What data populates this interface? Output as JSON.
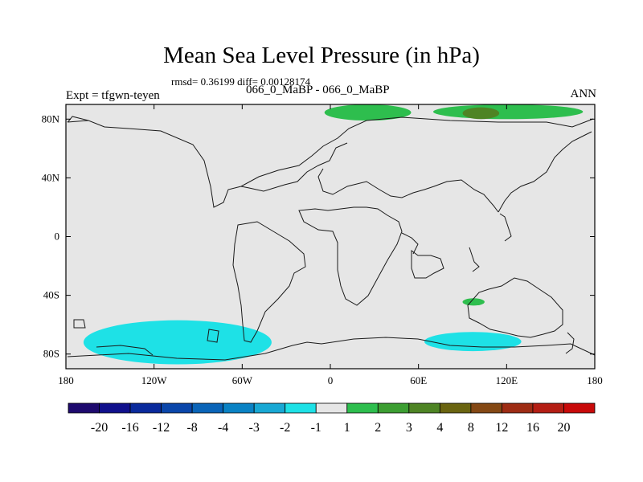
{
  "chart_data": {
    "type": "heatmap",
    "title": "Mean Sea Level Pressure (in hPa)",
    "stats_line": "rmsd= 0.36199 diff= 0.00128174",
    "subtitle": "066_0_MaBP - 066_0_MaBP",
    "experiment_label": "Expt = tfgwn-teyen",
    "season": "ANN",
    "x_range": [
      -180,
      180
    ],
    "y_range": [
      -90,
      90
    ],
    "x_ticks": [
      {
        "value": -180,
        "label": "180"
      },
      {
        "value": -120,
        "label": "120W"
      },
      {
        "value": -60,
        "label": "60W"
      },
      {
        "value": 0,
        "label": "0"
      },
      {
        "value": 60,
        "label": "60E"
      },
      {
        "value": 120,
        "label": "120E"
      },
      {
        "value": 180,
        "label": "180"
      }
    ],
    "y_ticks": [
      {
        "value": 80,
        "label": "80N"
      },
      {
        "value": 40,
        "label": "40N"
      },
      {
        "value": 0,
        "label": "0"
      },
      {
        "value": -40,
        "label": "40S"
      },
      {
        "value": -80,
        "label": "80S"
      }
    ],
    "background_class": "-1 to 1",
    "colorbar": {
      "levels": [
        "-20",
        "-16",
        "-12",
        "-8",
        "-4",
        "-3",
        "-2",
        "-1",
        "1",
        "2",
        "3",
        "4",
        "8",
        "12",
        "16",
        "20"
      ],
      "colors": [
        "#1e0a6e",
        "#10108c",
        "#0a2a9c",
        "#0a46aa",
        "#0a64b8",
        "#0a82c4",
        "#18a8d4",
        "#1ee1e6",
        "#e6e6e6",
        "#2ebe4e",
        "#3c9e32",
        "#4e8424",
        "#6a6410",
        "#844814",
        "#9e2c14",
        "#b41e14",
        "#c80a0a"
      ]
    },
    "anomaly_regions": [
      {
        "name": "arctic-positive-1",
        "class": "1 to 2",
        "color": "#2ebe4e",
        "lon": [
          -4,
          55
        ],
        "lat": [
          79,
          90
        ]
      },
      {
        "name": "arctic-positive-2",
        "class": "1 to 2",
        "color": "#2ebe4e",
        "lon": [
          70,
          172
        ],
        "lat": [
          80,
          90
        ]
      },
      {
        "name": "arctic-peak",
        "class": "3 to 4",
        "color": "#4e8424",
        "lon": [
          90,
          115
        ],
        "lat": [
          80,
          88
        ]
      },
      {
        "name": "southern-indian-positive",
        "class": "1 to 2",
        "color": "#2ebe4e",
        "lon": [
          90,
          105
        ],
        "lat": [
          -47,
          -42
        ]
      },
      {
        "name": "southern-pacific-negative",
        "class": "-2 to -1",
        "color": "#1ee1e6",
        "lon": [
          -168,
          -40
        ],
        "lat": [
          -87,
          -57
        ]
      },
      {
        "name": "southern-indian-negative",
        "class": "-2 to -1",
        "color": "#1ee1e6",
        "lon": [
          64,
          130
        ],
        "lat": [
          -78,
          -65
        ]
      }
    ]
  }
}
